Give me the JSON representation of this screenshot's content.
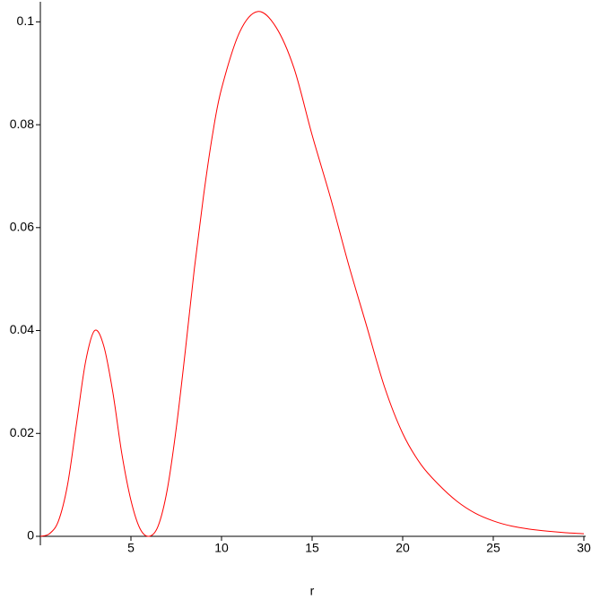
{
  "chart_data": {
    "type": "line",
    "x_label": "r",
    "x": [
      0,
      0.5,
      1,
      1.5,
      2,
      2.5,
      3,
      3.5,
      4,
      4.5,
      5,
      5.5,
      6,
      6.5,
      7,
      7.5,
      8,
      8.5,
      9,
      9.5,
      10,
      11,
      12,
      13,
      14,
      15,
      16,
      17,
      18,
      19,
      20,
      21,
      22,
      23,
      24,
      25,
      26,
      27,
      28,
      29,
      30
    ],
    "series": [
      {
        "color": "#ff0000",
        "values": [
          0,
          0.0005,
          0.003,
          0.01,
          0.022,
          0.034,
          0.04,
          0.037,
          0.028,
          0.016,
          0.007,
          0.0015,
          0,
          0.002,
          0.009,
          0.021,
          0.036,
          0.052,
          0.066,
          0.078,
          0.087,
          0.098,
          0.102,
          0.099,
          0.091,
          0.078,
          0.066,
          0.053,
          0.041,
          0.029,
          0.02,
          0.014,
          0.01,
          0.0068,
          0.0045,
          0.003,
          0.002,
          0.0014,
          0.001,
          0.0007,
          0.0005
        ]
      }
    ],
    "xlim": [
      0,
      30
    ],
    "xticks": [
      5,
      10,
      15,
      20,
      25,
      30
    ],
    "ylim": [
      0,
      0.1025
    ],
    "yticks": [
      0,
      0.02,
      0.04,
      0.06,
      0.08,
      0.1
    ]
  }
}
